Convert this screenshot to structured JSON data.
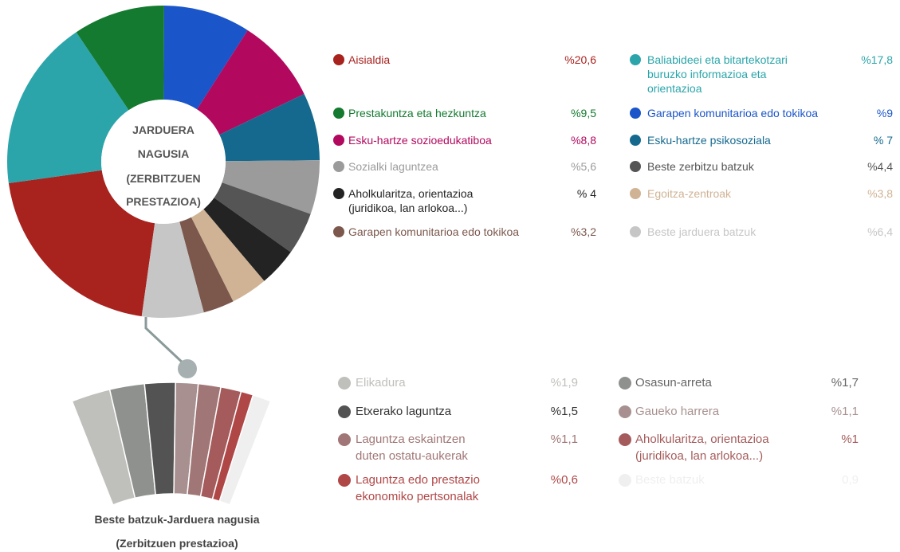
{
  "chart_data": [
    {
      "type": "pie",
      "center_label": [
        "JARDUERA",
        "NAGUSIA",
        "(ZERBITZUEN",
        "PRESTAZIOA)"
      ],
      "categories": [
        "Aisialdia",
        "Baliabideei eta bitartekotzari\nburuzko informazioa eta\norientazioa",
        "Prestakuntza eta hezkuntza",
        "Garapen komunitarioa edo tokikoa",
        "Esku-hartze sozioedukatiboa",
        "Esku-hartze psikosoziala",
        "Sozialki laguntzea",
        "Beste zerbitzu batzuk",
        "Aholkularitza, orientazioa\n(juridikoa, lan arlokoa...)",
        "Egoitza-zentroak",
        "Garapen komunitarioa edo tokikoa",
        "Beste jarduera batzuk"
      ],
      "values": [
        20.6,
        17.8,
        9.5,
        9,
        8.8,
        7,
        5.6,
        4.4,
        4,
        3.8,
        3.2,
        6.4
      ],
      "value_labels": [
        "%20,6",
        "%17,8",
        "%9,5",
        "%9",
        "%8,8",
        "% 7",
        "%5,6",
        "%4,4",
        "% 4",
        "%3,8",
        "%3,2",
        "%6,4"
      ],
      "colors": [
        "#a8221e",
        "#2ba5aa",
        "#137a2f",
        "#1a55c9",
        "#b2095f",
        "#15698f",
        "#9b9b9b",
        "#555555",
        "#232323",
        "#cfb394",
        "#7b574c",
        "#c6c6c6"
      ]
    },
    {
      "type": "fan",
      "title": [
        "Beste batzuk-Jarduera nagusia",
        "(Zerbitzuen prestazioa)"
      ],
      "categories": [
        "Elikadura",
        "Osasun-arreta",
        "Etxerako laguntza",
        "Gaueko harrera",
        "Laguntza eskaintzen\nduten ostatu-aukerak",
        "Aholkularitza, orientazioa\n(juridikoa, lan arlokoa...)",
        "Laguntza edo prestazio\nekonomiko pertsonalak",
        "Beste batzuk"
      ],
      "values": [
        1.9,
        1.7,
        1.5,
        1.1,
        1.1,
        1,
        0.6,
        0.9
      ],
      "value_labels": [
        "%1,9",
        "%1,7",
        "%1,5",
        "%1,1",
        "%1,1",
        "%1",
        "%0,6",
        "0,9"
      ],
      "colors": [
        "#bfbfbb",
        "#8e918d",
        "#535353",
        "#a89090",
        "#a17676",
        "#a55b5b",
        "#b04747",
        "#efefef"
      ]
    }
  ]
}
